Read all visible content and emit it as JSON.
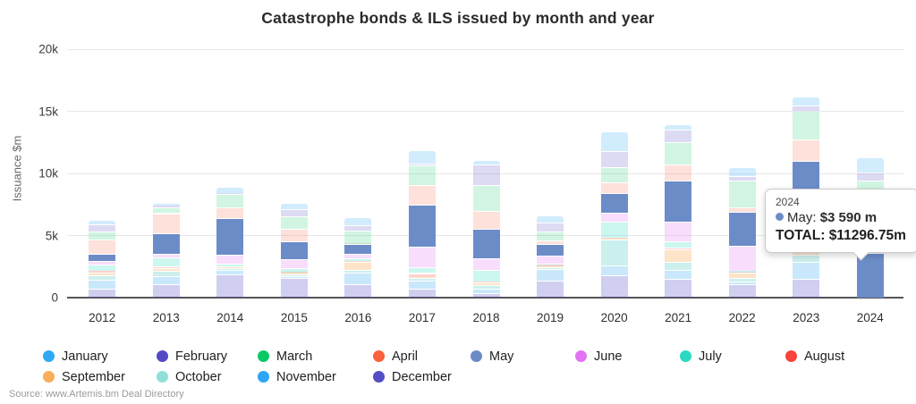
{
  "title": "Catastrophe bonds & ILS issued by month and year",
  "y_axis": {
    "label": "Issuance $m",
    "ticks": [
      {
        "label": "0",
        "value": 0
      },
      {
        "label": "5k",
        "value": 5000
      },
      {
        "label": "10k",
        "value": 10000
      },
      {
        "label": "15k",
        "value": 15000
      },
      {
        "label": "20k",
        "value": 20000
      }
    ]
  },
  "source": "Source: www.Artemis.bm Deal Directory",
  "tooltip": {
    "year": "2024",
    "series_label": "May:",
    "value": "$3 590 m",
    "total": "TOTAL: $11296.75m",
    "bullet_color": "#6C8CC8"
  },
  "chart_data": {
    "type": "bar",
    "stacked": true,
    "title": "Catastrophe bonds & ILS issued by month and year",
    "xlabel": "",
    "ylabel": "Issuance $m",
    "ylim": [
      0,
      20000
    ],
    "grid": true,
    "legend_position": "bottom",
    "highlighted_series": "May",
    "dim_opacity_for_unhighlighted": 0.24,
    "stack_order_note": "January drawn at top of each stack, December at bottom",
    "categories": [
      2012,
      2013,
      2014,
      2015,
      2016,
      2017,
      2018,
      2019,
      2020,
      2021,
      2022,
      2023,
      2024
    ],
    "series": [
      {
        "name": "January",
        "color": "#2FA9F4",
        "alpha": 0.22,
        "values": [
          350,
          200,
          480,
          500,
          650,
          1100,
          350,
          550,
          1550,
          450,
          700,
          700,
          1250
        ]
      },
      {
        "name": "February",
        "color": "#5348C4",
        "alpha": 0.2,
        "values": [
          550,
          100,
          100,
          550,
          450,
          150,
          1650,
          750,
          1300,
          1000,
          350,
          430,
          650
        ]
      },
      {
        "name": "March",
        "color": "#0BC965",
        "alpha": 0.19,
        "values": [
          650,
          500,
          1070,
          1000,
          1050,
          1550,
          2100,
          700,
          1250,
          1750,
          2200,
          2300,
          2350
        ]
      },
      {
        "name": "April",
        "color": "#F9603C",
        "alpha": 0.19,
        "values": [
          1200,
          1600,
          900,
          1000,
          50,
          1600,
          1400,
          300,
          800,
          1300,
          350,
          1750,
          3456.75
        ]
      },
      {
        "name": "May",
        "color": "#6C8CC8",
        "alpha": 1,
        "values": [
          550,
          1700,
          2950,
          1450,
          800,
          3400,
          2400,
          950,
          1600,
          3300,
          2750,
          4800,
          3590
        ]
      },
      {
        "name": "June",
        "color": "#E272F2",
        "alpha": 0.24,
        "values": [
          300,
          250,
          650,
          700,
          300,
          1600,
          900,
          650,
          750,
          1600,
          2000,
          1500,
          0
        ]
      },
      {
        "name": "July",
        "color": "#2BD9C2",
        "alpha": 0.24,
        "values": [
          500,
          750,
          250,
          350,
          250,
          500,
          950,
          100,
          1300,
          550,
          100,
          750,
          0
        ]
      },
      {
        "name": "August",
        "color": "#F8423C",
        "alpha": 0.24,
        "values": [
          100,
          150,
          0,
          50,
          100,
          330,
          100,
          50,
          50,
          100,
          50,
          100,
          0
        ]
      },
      {
        "name": "September",
        "color": "#F9AE5E",
        "alpha": 0.34,
        "values": [
          250,
          200,
          170,
          100,
          650,
          100,
          200,
          100,
          100,
          1000,
          450,
          400,
          0
        ]
      },
      {
        "name": "October",
        "color": "#8FDFD9",
        "alpha": 0.46,
        "values": [
          350,
          450,
          100,
          150,
          150,
          150,
          250,
          150,
          2050,
          700,
          250,
          550,
          0
        ]
      },
      {
        "name": "November",
        "color": "#2FA5F5",
        "alpha": 0.26,
        "values": [
          700,
          600,
          350,
          200,
          1000,
          650,
          400,
          900,
          800,
          700,
          200,
          1400,
          0
        ]
      },
      {
        "name": "December",
        "color": "#534EC6",
        "alpha": 0.27,
        "values": [
          750,
          1100,
          1900,
          1550,
          1050,
          750,
          350,
          1400,
          1800,
          1500,
          1100,
          1500,
          0
        ]
      }
    ],
    "totals_by_year": [
      6250,
      7600,
      8920,
      7600,
      6500,
      11880,
      11050,
      6600,
      13350,
      13950,
      10500,
      16180,
      11296.75
    ],
    "tooltip_point": {
      "year": 2024,
      "month": "May",
      "value_m": 3590,
      "year_total_m": 11296.75
    }
  }
}
